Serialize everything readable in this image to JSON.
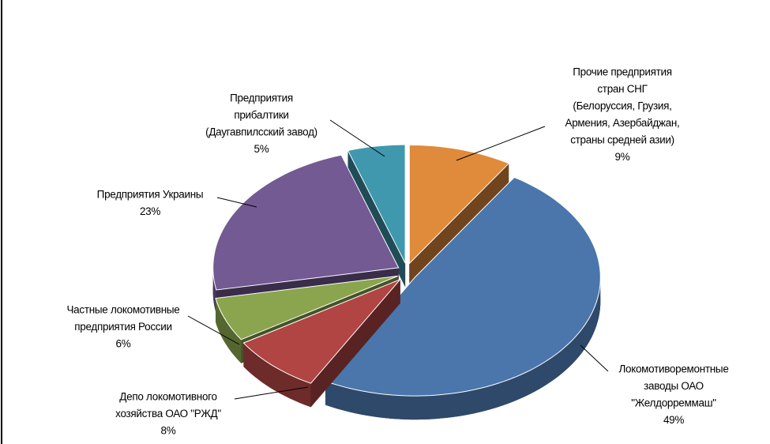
{
  "chart_data": {
    "type": "pie",
    "categories": [
      [
        "Прочие предприятия",
        "стран СНГ",
        "(Белоруссия, Грузия,",
        "Армения,  Азербайджан,",
        "страны средней азии)"
      ],
      [
        "Локомотиворемонтные",
        "заводы ОАО",
        "\"Желдорреммаш\""
      ],
      [
        "Депо локомотивного",
        "хозяйства ОАО \"РЖД\""
      ],
      [
        "Частные локомотивные",
        "предприятия России"
      ],
      [
        "Предприятия Украины"
      ],
      [
        "Предприятия",
        "прибалтики",
        "(Даугавпилсский завод)"
      ]
    ],
    "values": [
      9,
      49,
      8,
      6,
      23,
      5
    ],
    "value_labels": [
      "9%",
      "49%",
      "8%",
      "6%",
      "23%",
      "5%"
    ],
    "colors": [
      "#e08a3c",
      "#4a76ab",
      "#b04543",
      "#8aa54e",
      "#735a93",
      "#3f98ae"
    ]
  }
}
